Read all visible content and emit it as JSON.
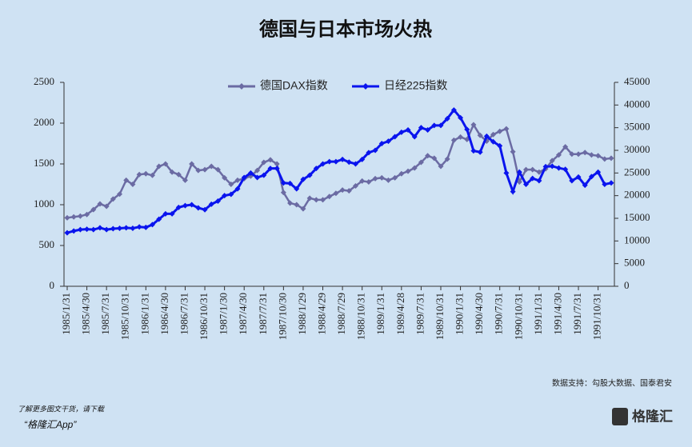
{
  "chart_data": {
    "type": "line",
    "title": "德国与日本市场火热",
    "source": "数据支持：勾股大数据、国泰君安",
    "categories": [
      "1985/1/31",
      null,
      null,
      "1985/4/30",
      null,
      null,
      "1985/7/31",
      null,
      null,
      "1985/10/31",
      null,
      null,
      "1986/1/31",
      null,
      null,
      "1986/4/30",
      null,
      null,
      "1986/7/31",
      null,
      null,
      "1986/10/31",
      null,
      null,
      "1987/1/30",
      null,
      null,
      "1987/4/30",
      null,
      null,
      "1987/7/31",
      null,
      null,
      "1987/10/30",
      null,
      null,
      "1988/1/29",
      null,
      null,
      "1988/4/29",
      null,
      null,
      "1988/7/29",
      null,
      null,
      "1988/10/31",
      null,
      null,
      "1989/1/31",
      null,
      null,
      "1989/4/28",
      null,
      null,
      "1989/7/31",
      null,
      null,
      "1989/10/31",
      null,
      null,
      "1990/1/31",
      null,
      null,
      "1990/4/30",
      null,
      null,
      "1990/7/31",
      null,
      null,
      "1990/10/31",
      null,
      null,
      "1991/1/31",
      null,
      null,
      "1991/4/30",
      null,
      null,
      "1991/7/31",
      null,
      null,
      "1991/10/31",
      null,
      null
    ],
    "series": [
      {
        "name": "德国DAX指数",
        "color": "#6b6ba3",
        "axis": "y",
        "values": [
          840,
          850,
          860,
          880,
          940,
          1010,
          980,
          1070,
          1130,
          1300,
          1250,
          1370,
          1380,
          1360,
          1470,
          1500,
          1400,
          1370,
          1300,
          1500,
          1420,
          1430,
          1470,
          1430,
          1330,
          1250,
          1300,
          1320,
          1350,
          1420,
          1520,
          1550,
          1500,
          1150,
          1020,
          1000,
          950,
          1080,
          1060,
          1060,
          1100,
          1140,
          1180,
          1170,
          1230,
          1290,
          1280,
          1320,
          1330,
          1300,
          1330,
          1380,
          1410,
          1450,
          1520,
          1600,
          1570,
          1470,
          1560,
          1790,
          1830,
          1800,
          1980,
          1850,
          1780,
          1860,
          1900,
          1930,
          1650,
          1280,
          1430,
          1430,
          1400,
          1440,
          1540,
          1610,
          1710,
          1620,
          1620,
          1640,
          1610,
          1600,
          1560,
          1570
        ]
      },
      {
        "name": "日经225指数",
        "color": "#0a14ee",
        "axis": "y2",
        "values": [
          11800,
          12200,
          12500,
          12600,
          12500,
          12900,
          12500,
          12700,
          12800,
          12900,
          12800,
          13100,
          13000,
          13600,
          14800,
          16000,
          16000,
          17400,
          17800,
          18000,
          17300,
          16900,
          18100,
          18800,
          20000,
          20300,
          21500,
          24000,
          25000,
          24000,
          24500,
          26000,
          26000,
          22800,
          22700,
          21500,
          23600,
          24500,
          26000,
          27000,
          27500,
          27500,
          28000,
          27400,
          27000,
          28000,
          29500,
          30000,
          31500,
          32000,
          33000,
          34000,
          34500,
          33000,
          35000,
          34500,
          35500,
          35500,
          37000,
          38900,
          37200,
          34600,
          29900,
          29600,
          33100,
          31900,
          31000,
          25000,
          20900,
          25200,
          22500,
          23800,
          23300,
          26400,
          26500,
          26100,
          25800,
          23300,
          24100,
          22300,
          24200,
          25200,
          22500,
          22800
        ]
      }
    ],
    "ylim": [
      0,
      2500
    ],
    "yticks": [
      0,
      500,
      1000,
      1500,
      2000,
      2500
    ],
    "y2lim": [
      0,
      45000
    ],
    "y2ticks": [
      0,
      5000,
      10000,
      15000,
      20000,
      25000,
      30000,
      35000,
      40000,
      45000
    ],
    "legend": "top"
  },
  "footer": {
    "prompt": "了解更多图文干货，请下载",
    "app": "“格隆汇App”",
    "logo": "格隆汇"
  }
}
